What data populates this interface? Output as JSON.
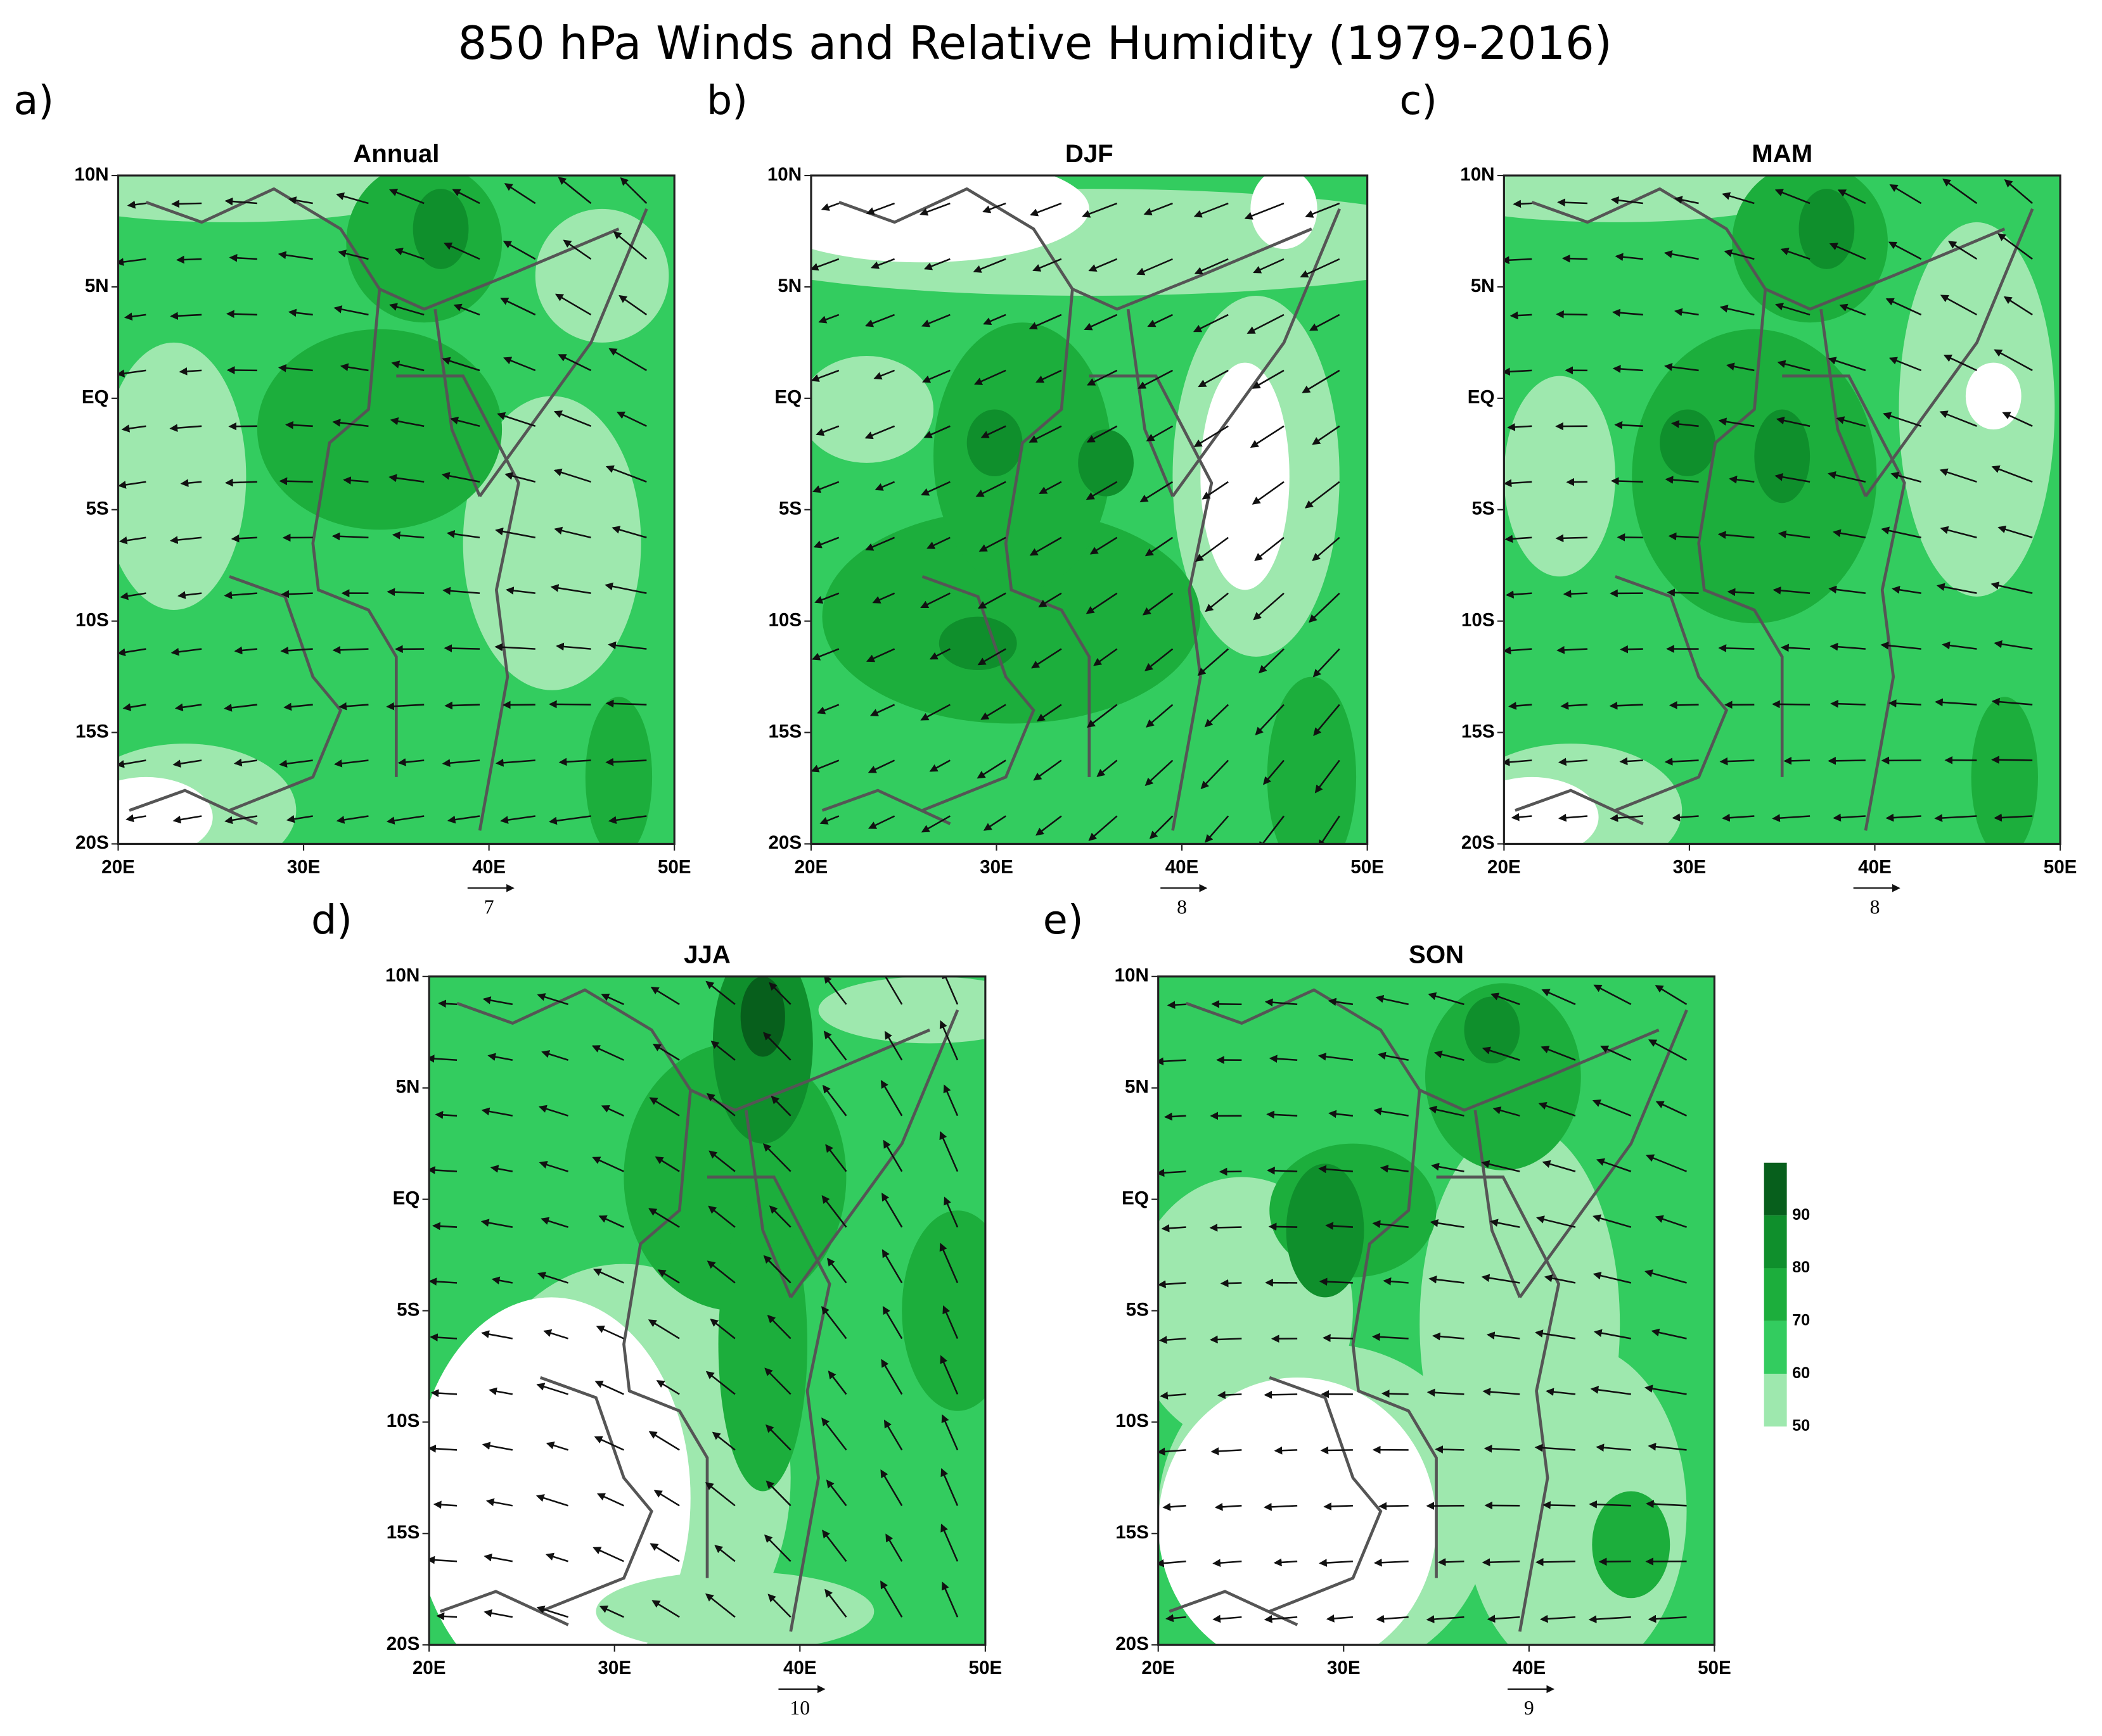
{
  "title": "850 hPa Winds and Relative Humidity (1979-2016)",
  "panels": [
    {
      "label": "a)",
      "title": "Annual",
      "ref_vector": "7"
    },
    {
      "label": "b)",
      "title": "DJF",
      "ref_vector": "8"
    },
    {
      "label": "c)",
      "title": "MAM",
      "ref_vector": "8"
    },
    {
      "label": "d)",
      "title": "JJA",
      "ref_vector": "10"
    },
    {
      "label": "e)",
      "title": "SON",
      "ref_vector": "9"
    }
  ],
  "latitude_labels": [
    "10N",
    "5N",
    "EQ",
    "5S",
    "10S",
    "15S",
    "20S"
  ],
  "longitude_labels": [
    "20E",
    "30E",
    "40E",
    "50E"
  ],
  "colorbar_labels": [
    "90",
    "80",
    "70",
    "60",
    "50"
  ]
}
